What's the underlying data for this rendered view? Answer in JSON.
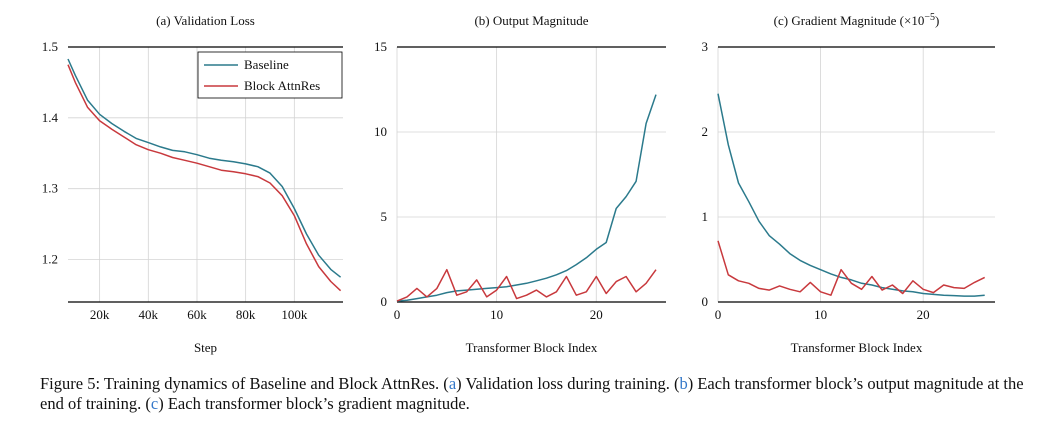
{
  "caption": {
    "prefix": "Figure 5: Training dynamics of Baseline and Block AttnRes. (",
    "ref_a": "a",
    "text_a": ") Validation loss during training. (",
    "ref_b": "b",
    "text_b": ") Each transformer block’s output magnitude at the end of training. (",
    "ref_c": "c",
    "text_c": ") Each transformer block’s gradient magnitude."
  },
  "colors": {
    "baseline": "#2b7a8c",
    "attnres": "#c8393d",
    "grid": "#d4d4d4",
    "axis": "#000000"
  },
  "chart_data": [
    {
      "type": "line",
      "title": "(a) Validation Loss",
      "xlabel": "Step",
      "ylabel": "",
      "xlim": [
        7000,
        120000
      ],
      "ylim": [
        1.14,
        1.5
      ],
      "xticks": [
        20000,
        40000,
        60000,
        80000,
        100000
      ],
      "xtick_labels": [
        "20k",
        "40k",
        "60k",
        "80k",
        "100k"
      ],
      "yticks": [
        1.2,
        1.3,
        1.4,
        1.5
      ],
      "ytick_labels": [
        "1.2",
        "1.3",
        "1.4",
        "1.5"
      ],
      "grid": true,
      "legend": "top-right",
      "series": [
        {
          "name": "Baseline",
          "color": "baseline",
          "x": [
            7000,
            10000,
            15000,
            20000,
            25000,
            30000,
            35000,
            40000,
            45000,
            50000,
            55000,
            60000,
            65000,
            70000,
            75000,
            80000,
            85000,
            90000,
            95000,
            100000,
            105000,
            110000,
            115000,
            119000
          ],
          "y": [
            1.483,
            1.46,
            1.425,
            1.405,
            1.392,
            1.381,
            1.371,
            1.365,
            1.359,
            1.354,
            1.352,
            1.348,
            1.343,
            1.34,
            1.338,
            1.335,
            1.331,
            1.322,
            1.303,
            1.272,
            1.236,
            1.206,
            1.186,
            1.175
          ]
        },
        {
          "name": "Block AttnRes",
          "color": "attnres",
          "x": [
            7000,
            10000,
            15000,
            20000,
            25000,
            30000,
            35000,
            40000,
            45000,
            50000,
            55000,
            60000,
            65000,
            70000,
            75000,
            80000,
            85000,
            90000,
            95000,
            100000,
            105000,
            110000,
            115000,
            119000
          ],
          "y": [
            1.475,
            1.45,
            1.415,
            1.396,
            1.384,
            1.373,
            1.362,
            1.355,
            1.35,
            1.344,
            1.34,
            1.336,
            1.331,
            1.326,
            1.324,
            1.321,
            1.317,
            1.308,
            1.29,
            1.262,
            1.222,
            1.19,
            1.169,
            1.156
          ]
        }
      ]
    },
    {
      "type": "line",
      "title": "(b) Output Magnitude",
      "xlabel": "Transformer Block Index",
      "ylabel": "",
      "xlim": [
        0,
        27
      ],
      "ylim": [
        0,
        15
      ],
      "xticks": [
        0,
        10,
        20
      ],
      "xtick_labels": [
        "0",
        "10",
        "20"
      ],
      "yticks": [
        0,
        5,
        10,
        15
      ],
      "ytick_labels": [
        "0",
        "5",
        "10",
        "15"
      ],
      "grid": true,
      "series": [
        {
          "name": "Baseline",
          "color": "baseline",
          "x": [
            0,
            1,
            2,
            3,
            4,
            5,
            6,
            7,
            8,
            9,
            10,
            11,
            12,
            13,
            14,
            15,
            16,
            17,
            18,
            19,
            20,
            21,
            22,
            23,
            24,
            25,
            26
          ],
          "y": [
            0.05,
            0.1,
            0.2,
            0.3,
            0.4,
            0.55,
            0.65,
            0.7,
            0.75,
            0.8,
            0.85,
            0.9,
            1.0,
            1.1,
            1.25,
            1.4,
            1.6,
            1.85,
            2.2,
            2.6,
            3.1,
            3.5,
            5.5,
            6.2,
            7.1,
            10.5,
            12.2
          ]
        },
        {
          "name": "Block AttnRes",
          "color": "attnres",
          "x": [
            0,
            1,
            2,
            3,
            4,
            5,
            6,
            7,
            8,
            9,
            10,
            11,
            12,
            13,
            14,
            15,
            16,
            17,
            18,
            19,
            20,
            21,
            22,
            23,
            24,
            25,
            26
          ],
          "y": [
            0.05,
            0.3,
            0.8,
            0.3,
            0.8,
            1.9,
            0.4,
            0.6,
            1.3,
            0.3,
            0.7,
            1.5,
            0.2,
            0.4,
            0.7,
            0.3,
            0.6,
            1.5,
            0.4,
            0.6,
            1.5,
            0.5,
            1.2,
            1.5,
            0.6,
            1.1,
            1.9
          ]
        }
      ]
    },
    {
      "type": "line",
      "title": "(c) Gradient Magnitude (×10",
      "title_sup": "−5",
      "title_end": ")",
      "xlabel": "Transformer Block Index",
      "ylabel": "",
      "xlim": [
        0,
        27
      ],
      "ylim": [
        0,
        3
      ],
      "xticks": [
        0,
        10,
        20
      ],
      "xtick_labels": [
        "0",
        "10",
        "20"
      ],
      "yticks": [
        0,
        1,
        2,
        3
      ],
      "ytick_labels": [
        "0",
        "1",
        "2",
        "3"
      ],
      "grid": true,
      "series": [
        {
          "name": "Baseline",
          "color": "baseline",
          "x": [
            0,
            1,
            2,
            3,
            4,
            5,
            6,
            7,
            8,
            9,
            10,
            11,
            12,
            13,
            14,
            15,
            16,
            17,
            18,
            19,
            20,
            21,
            22,
            23,
            24,
            25,
            26
          ],
          "y": [
            2.45,
            1.85,
            1.4,
            1.18,
            0.95,
            0.78,
            0.68,
            0.57,
            0.49,
            0.43,
            0.38,
            0.33,
            0.29,
            0.26,
            0.22,
            0.2,
            0.17,
            0.15,
            0.13,
            0.12,
            0.1,
            0.09,
            0.08,
            0.075,
            0.07,
            0.07,
            0.08
          ]
        },
        {
          "name": "Block AttnRes",
          "color": "attnres",
          "x": [
            0,
            1,
            2,
            3,
            4,
            5,
            6,
            7,
            8,
            9,
            10,
            11,
            12,
            13,
            14,
            15,
            16,
            17,
            18,
            19,
            20,
            21,
            22,
            23,
            24,
            25,
            26
          ],
          "y": [
            0.72,
            0.32,
            0.25,
            0.22,
            0.16,
            0.14,
            0.19,
            0.15,
            0.12,
            0.23,
            0.12,
            0.08,
            0.38,
            0.22,
            0.15,
            0.3,
            0.14,
            0.2,
            0.1,
            0.25,
            0.15,
            0.11,
            0.2,
            0.17,
            0.16,
            0.23,
            0.29
          ]
        }
      ]
    }
  ]
}
